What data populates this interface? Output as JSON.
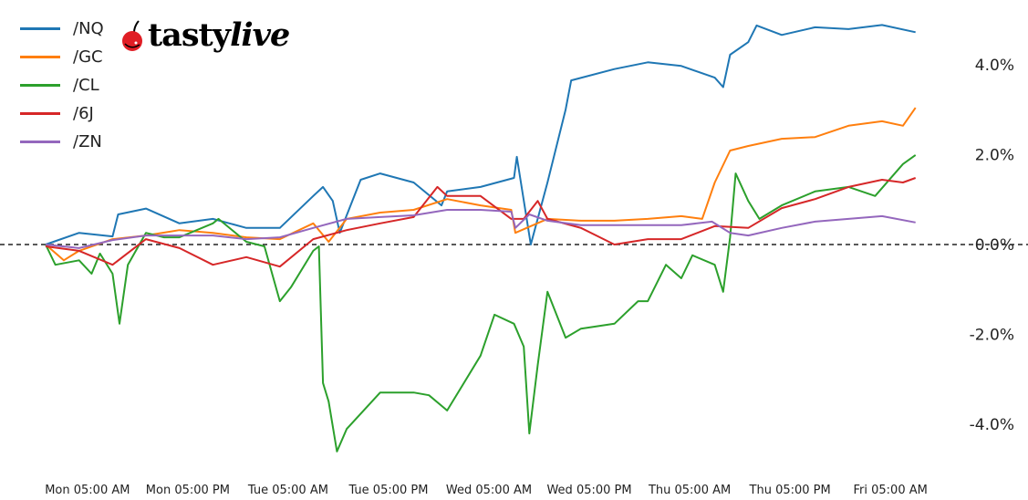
{
  "logo": {
    "text_main": "tasty",
    "text_italic": "live",
    "icon": "cherry-icon",
    "icon_color": "#e01e25"
  },
  "chart_data": {
    "type": "line",
    "title": "",
    "xlabel": "",
    "ylabel": "",
    "x_range": [
      "Mon 00:00",
      "Fri 08:00"
    ],
    "ylim": [
      -4.8,
      5.3
    ],
    "y_axis_position": "right",
    "yticks": [
      -4,
      -2,
      0,
      2,
      4
    ],
    "ytick_labels": [
      "-4.0%",
      "-2.0%",
      "0.0%",
      "2.0%",
      "4.0%"
    ],
    "xticks": [
      "Mon 05:00",
      "Mon 17:00",
      "Tue 05:00",
      "Tue 17:00",
      "Wed 05:00",
      "Wed 17:00",
      "Thu 05:00",
      "Thu 17:00",
      "Fri 05:00"
    ],
    "xtick_labels": [
      "Mon 05:00 AM",
      "Mon 05:00 PM",
      "Tue 05:00 AM",
      "Tue 05:00 PM",
      "Wed 05:00 AM",
      "Wed 05:00 PM",
      "Thu 05:00 AM",
      "Thu 05:00 PM",
      "Fri 05:00 AM"
    ],
    "reference_line": {
      "y": 0,
      "style": "dashed",
      "color": "#000000"
    },
    "grid": false,
    "legend_position": "top-left",
    "series": [
      {
        "name": "/NQ",
        "color": "#1f77b4",
        "points": [
          [
            "Mon 00:00",
            0
          ],
          [
            "Mon 04:00",
            0.26
          ],
          [
            "Mon 08:00",
            0.18
          ],
          [
            "Mon 08:40",
            0.67
          ],
          [
            "Mon 12:00",
            0.8
          ],
          [
            "Mon 16:00",
            0.47
          ],
          [
            "Mon 20:00",
            0.57
          ],
          [
            "Tue 00:00",
            0.37
          ],
          [
            "Tue 04:00",
            0.37
          ],
          [
            "Tue 08:00",
            1.08
          ],
          [
            "Tue 09:10",
            1.28
          ],
          [
            "Tue 10:20",
            0.97
          ],
          [
            "Tue 11:10",
            0.26
          ],
          [
            "Tue 13:40",
            1.44
          ],
          [
            "Tue 16:00",
            1.58
          ],
          [
            "Tue 20:00",
            1.38
          ],
          [
            "Tue 23:20",
            0.87
          ],
          [
            "Wed 00:00",
            1.18
          ],
          [
            "Wed 04:00",
            1.28
          ],
          [
            "Wed 08:00",
            1.48
          ],
          [
            "Wed 08:20",
            1.95
          ],
          [
            "Wed 10:00",
            0
          ],
          [
            "Wed 12:00",
            1.38
          ],
          [
            "Wed 14:10",
            3.0
          ],
          [
            "Wed 14:50",
            3.65
          ],
          [
            "Wed 20:00",
            3.9
          ],
          [
            "Thu 00:00",
            4.05
          ],
          [
            "Thu 04:00",
            3.97
          ],
          [
            "Thu 08:00",
            3.71
          ],
          [
            "Thu 09:00",
            3.5
          ],
          [
            "Thu 09:50",
            4.22
          ],
          [
            "Thu 12:00",
            4.5
          ],
          [
            "Thu 13:00",
            4.87
          ],
          [
            "Thu 16:00",
            4.66
          ],
          [
            "Thu 20:00",
            4.83
          ],
          [
            "Fri 00:00",
            4.79
          ],
          [
            "Fri 04:00",
            4.88
          ],
          [
            "Fri 08:00",
            4.72
          ]
        ]
      },
      {
        "name": "/GC",
        "color": "#ff7f0e",
        "points": [
          [
            "Mon 00:00",
            0
          ],
          [
            "Mon 02:10",
            -0.35
          ],
          [
            "Mon 04:00",
            -0.14
          ],
          [
            "Mon 08:00",
            0.12
          ],
          [
            "Mon 12:00",
            0.2
          ],
          [
            "Mon 16:00",
            0.32
          ],
          [
            "Mon 20:00",
            0.26
          ],
          [
            "Tue 00:00",
            0.16
          ],
          [
            "Tue 04:00",
            0.12
          ],
          [
            "Tue 08:00",
            0.47
          ],
          [
            "Tue 09:50",
            0.06
          ],
          [
            "Tue 12:00",
            0.57
          ],
          [
            "Tue 16:00",
            0.71
          ],
          [
            "Tue 20:00",
            0.77
          ],
          [
            "Wed 00:00",
            1.01
          ],
          [
            "Wed 04:00",
            0.87
          ],
          [
            "Wed 07:40",
            0.77
          ],
          [
            "Wed 08:10",
            0.26
          ],
          [
            "Wed 12:00",
            0.57
          ],
          [
            "Wed 16:00",
            0.53
          ],
          [
            "Wed 20:00",
            0.53
          ],
          [
            "Thu 00:00",
            0.57
          ],
          [
            "Thu 04:00",
            0.63
          ],
          [
            "Thu 06:30",
            0.57
          ],
          [
            "Thu 08:00",
            1.38
          ],
          [
            "Thu 09:50",
            2.09
          ],
          [
            "Thu 12:00",
            2.19
          ],
          [
            "Thu 16:00",
            2.35
          ],
          [
            "Thu 20:00",
            2.39
          ],
          [
            "Fri 00:00",
            2.64
          ],
          [
            "Fri 04:00",
            2.74
          ],
          [
            "Fri 06:30",
            2.64
          ],
          [
            "Fri 08:00",
            3.04
          ]
        ]
      },
      {
        "name": "/CL",
        "color": "#2ca02c",
        "points": [
          [
            "Mon 00:00",
            0
          ],
          [
            "Mon 01:10",
            -0.45
          ],
          [
            "Mon 04:00",
            -0.35
          ],
          [
            "Mon 05:30",
            -0.65
          ],
          [
            "Mon 06:30",
            -0.2
          ],
          [
            "Mon 08:00",
            -0.65
          ],
          [
            "Mon 08:50",
            -1.76
          ],
          [
            "Mon 09:50",
            -0.45
          ],
          [
            "Mon 12:00",
            0.26
          ],
          [
            "Mon 14:10",
            0.16
          ],
          [
            "Mon 16:00",
            0.16
          ],
          [
            "Mon 20:00",
            0.47
          ],
          [
            "Mon 20:40",
            0.57
          ],
          [
            "Tue 00:00",
            0.06
          ],
          [
            "Tue 02:10",
            -0.04
          ],
          [
            "Tue 04:00",
            -1.26
          ],
          [
            "Tue 05:20",
            -0.95
          ],
          [
            "Tue 08:00",
            -0.14
          ],
          [
            "Tue 08:40",
            -0.04
          ],
          [
            "Tue 09:10",
            -3.08
          ],
          [
            "Tue 09:50",
            -3.49
          ],
          [
            "Tue 10:50",
            -4.6
          ],
          [
            "Tue 12:00",
            -4.1
          ],
          [
            "Tue 16:00",
            -3.29
          ],
          [
            "Tue 20:00",
            -3.29
          ],
          [
            "Tue 21:50",
            -3.35
          ],
          [
            "Wed 00:00",
            -3.69
          ],
          [
            "Wed 04:00",
            -2.47
          ],
          [
            "Wed 05:40",
            -1.56
          ],
          [
            "Wed 08:00",
            -1.76
          ],
          [
            "Wed 09:10",
            -2.27
          ],
          [
            "Wed 09:50",
            -4.2
          ],
          [
            "Wed 10:50",
            -2.68
          ],
          [
            "Wed 12:00",
            -1.05
          ],
          [
            "Wed 14:10",
            -2.07
          ],
          [
            "Wed 16:00",
            -1.87
          ],
          [
            "Wed 20:00",
            -1.76
          ],
          [
            "Wed 22:50",
            -1.26
          ],
          [
            "Thu 00:00",
            -1.26
          ],
          [
            "Thu 02:10",
            -0.45
          ],
          [
            "Thu 04:00",
            -0.75
          ],
          [
            "Thu 05:20",
            -0.24
          ],
          [
            "Thu 08:00",
            -0.45
          ],
          [
            "Thu 09:00",
            -1.05
          ],
          [
            "Thu 09:50",
            0.16
          ],
          [
            "Thu 10:30",
            1.58
          ],
          [
            "Thu 12:00",
            0.97
          ],
          [
            "Thu 13:20",
            0.57
          ],
          [
            "Thu 16:00",
            0.87
          ],
          [
            "Thu 20:00",
            1.18
          ],
          [
            "Fri 00:00",
            1.28
          ],
          [
            "Fri 03:10",
            1.08
          ],
          [
            "Fri 06:30",
            1.79
          ],
          [
            "Fri 08:00",
            1.99
          ]
        ]
      },
      {
        "name": "/6J",
        "color": "#d62728",
        "points": [
          [
            "Mon 00:00",
            -0.04
          ],
          [
            "Mon 04:00",
            -0.14
          ],
          [
            "Mon 08:00",
            -0.45
          ],
          [
            "Mon 12:00",
            0.12
          ],
          [
            "Mon 16:00",
            -0.08
          ],
          [
            "Mon 20:00",
            -0.45
          ],
          [
            "Tue 00:00",
            -0.28
          ],
          [
            "Tue 04:00",
            -0.49
          ],
          [
            "Tue 08:00",
            0.12
          ],
          [
            "Tue 12:00",
            0.32
          ],
          [
            "Tue 16:00",
            0.47
          ],
          [
            "Tue 20:00",
            0.61
          ],
          [
            "Tue 22:50",
            1.28
          ],
          [
            "Wed 00:00",
            1.08
          ],
          [
            "Wed 04:00",
            1.08
          ],
          [
            "Wed 07:40",
            0.57
          ],
          [
            "Wed 09:10",
            0.57
          ],
          [
            "Wed 10:50",
            0.97
          ],
          [
            "Wed 12:00",
            0.57
          ],
          [
            "Wed 16:00",
            0.37
          ],
          [
            "Wed 20:00",
            0
          ],
          [
            "Thu 00:00",
            0.12
          ],
          [
            "Thu 04:00",
            0.12
          ],
          [
            "Thu 08:00",
            0.41
          ],
          [
            "Thu 12:00",
            0.37
          ],
          [
            "Thu 16:00",
            0.81
          ],
          [
            "Thu 20:00",
            1.01
          ],
          [
            "Fri 00:00",
            1.28
          ],
          [
            "Fri 04:00",
            1.44
          ],
          [
            "Fri 06:30",
            1.38
          ],
          [
            "Fri 08:00",
            1.48
          ]
        ]
      },
      {
        "name": "/ZN",
        "color": "#9467bd",
        "points": [
          [
            "Mon 00:00",
            0
          ],
          [
            "Mon 04:00",
            -0.08
          ],
          [
            "Mon 08:00",
            0.1
          ],
          [
            "Mon 12:00",
            0.2
          ],
          [
            "Mon 16:00",
            0.2
          ],
          [
            "Mon 20:00",
            0.2
          ],
          [
            "Tue 00:00",
            0.12
          ],
          [
            "Tue 04:00",
            0.16
          ],
          [
            "Tue 08:00",
            0.37
          ],
          [
            "Tue 12:00",
            0.57
          ],
          [
            "Tue 16:00",
            0.61
          ],
          [
            "Tue 20:00",
            0.65
          ],
          [
            "Wed 00:00",
            0.77
          ],
          [
            "Wed 04:00",
            0.77
          ],
          [
            "Wed 07:40",
            0.73
          ],
          [
            "Wed 08:10",
            0.37
          ],
          [
            "Wed 09:50",
            0.67
          ],
          [
            "Wed 12:00",
            0.53
          ],
          [
            "Wed 16:00",
            0.43
          ],
          [
            "Wed 20:00",
            0.43
          ],
          [
            "Thu 00:00",
            0.43
          ],
          [
            "Thu 04:00",
            0.43
          ],
          [
            "Thu 07:40",
            0.51
          ],
          [
            "Thu 09:50",
            0.26
          ],
          [
            "Thu 12:00",
            0.2
          ],
          [
            "Thu 16:00",
            0.37
          ],
          [
            "Thu 20:00",
            0.51
          ],
          [
            "Fri 00:00",
            0.57
          ],
          [
            "Fri 04:00",
            0.63
          ],
          [
            "Fri 08:00",
            0.49
          ]
        ]
      }
    ]
  }
}
